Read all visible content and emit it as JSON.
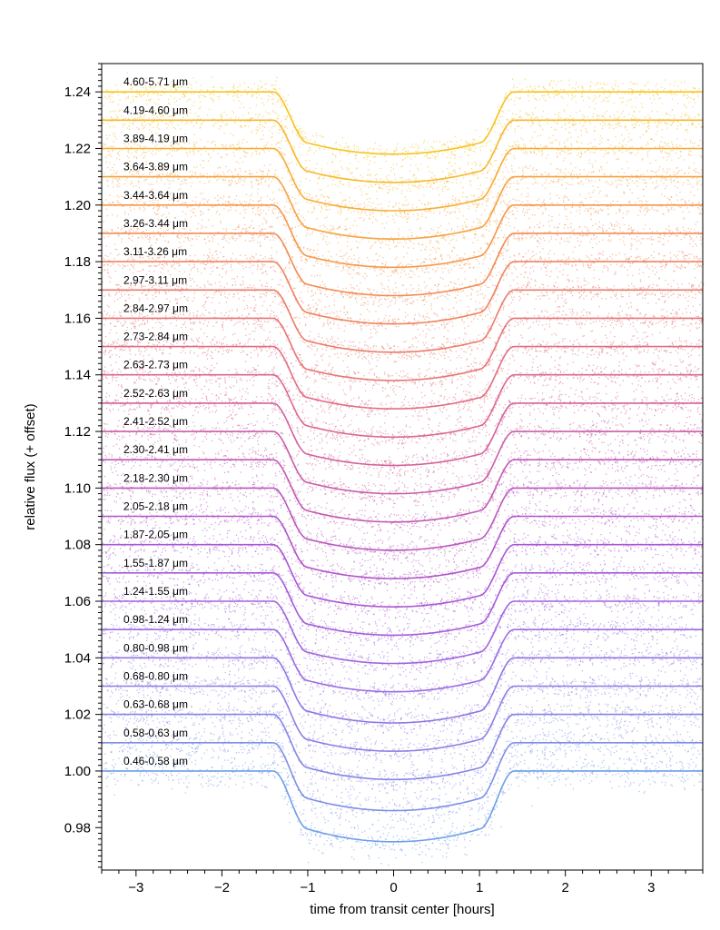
{
  "chart_data": {
    "type": "scatter",
    "xlabel": "time from transit center [hours]",
    "ylabel": "relative flux (+ offset)",
    "xlim": [
      -3.4,
      3.6
    ],
    "ylim": [
      0.965,
      1.25
    ],
    "x_ticks": [
      -3,
      -2,
      -1,
      0,
      1,
      2,
      3
    ],
    "x_tick_labels": [
      "−3",
      "−2",
      "−1",
      "0",
      "1",
      "2",
      "3"
    ],
    "y_ticks": [
      0.98,
      1.0,
      1.02,
      1.04,
      1.06,
      1.08,
      1.1,
      1.12,
      1.14,
      1.16,
      1.18,
      1.2,
      1.22,
      1.24
    ],
    "y_tick_labels": [
      "0.98",
      "1.00",
      "1.02",
      "1.04",
      "1.06",
      "1.08",
      "1.10",
      "1.12",
      "1.14",
      "1.16",
      "1.18",
      "1.20",
      "1.22",
      "1.24"
    ],
    "offset_step": 0.01,
    "transit": {
      "t1": -1.4,
      "t2": -1.0,
      "t3": 1.0,
      "t4": 1.4
    },
    "grid": false,
    "series": [
      {
        "name": "0.46-0.58 μm",
        "baseline": 1.0,
        "depth": 0.025,
        "color": "#6f9ee6"
      },
      {
        "name": "0.58-0.63 μm",
        "baseline": 1.01,
        "depth": 0.024,
        "color": "#7d8fe6"
      },
      {
        "name": "0.63-0.68 μm",
        "baseline": 1.02,
        "depth": 0.023,
        "color": "#8585e4"
      },
      {
        "name": "0.68-0.80 μm",
        "baseline": 1.03,
        "depth": 0.023,
        "color": "#8a7fe3"
      },
      {
        "name": "0.80-0.98 μm",
        "baseline": 1.04,
        "depth": 0.023,
        "color": "#9076e2"
      },
      {
        "name": "0.98-1.24 μm",
        "baseline": 1.05,
        "depth": 0.022,
        "color": "#9a6de0"
      },
      {
        "name": "1.24-1.55 μm",
        "baseline": 1.06,
        "depth": 0.022,
        "color": "#a163dc"
      },
      {
        "name": "1.55-1.87 μm",
        "baseline": 1.07,
        "depth": 0.022,
        "color": "#a65bd8"
      },
      {
        "name": "1.87-2.05 μm",
        "baseline": 1.08,
        "depth": 0.022,
        "color": "#ab56d2"
      },
      {
        "name": "2.05-2.18 μm",
        "baseline": 1.09,
        "depth": 0.022,
        "color": "#b255c8"
      },
      {
        "name": "2.18-2.30 μm",
        "baseline": 1.1,
        "depth": 0.022,
        "color": "#b957bd"
      },
      {
        "name": "2.30-2.41 μm",
        "baseline": 1.11,
        "depth": 0.022,
        "color": "#c05ab3"
      },
      {
        "name": "2.41-2.52 μm",
        "baseline": 1.12,
        "depth": 0.022,
        "color": "#c85ea8"
      },
      {
        "name": "2.52-2.63 μm",
        "baseline": 1.13,
        "depth": 0.022,
        "color": "#d2629a"
      },
      {
        "name": "2.63-2.73 μm",
        "baseline": 1.14,
        "depth": 0.022,
        "color": "#da688e"
      },
      {
        "name": "2.73-2.84 μm",
        "baseline": 1.15,
        "depth": 0.022,
        "color": "#e06e82"
      },
      {
        "name": "2.84-2.97 μm",
        "baseline": 1.16,
        "depth": 0.022,
        "color": "#e67576"
      },
      {
        "name": "2.97-3.11 μm",
        "baseline": 1.17,
        "depth": 0.022,
        "color": "#ea7c6b"
      },
      {
        "name": "3.11-3.26 μm",
        "baseline": 1.18,
        "depth": 0.022,
        "color": "#ee8460"
      },
      {
        "name": "3.26-3.44 μm",
        "baseline": 1.19,
        "depth": 0.022,
        "color": "#f18d55"
      },
      {
        "name": "3.44-3.64 μm",
        "baseline": 1.2,
        "depth": 0.022,
        "color": "#f4974b"
      },
      {
        "name": "3.64-3.89 μm",
        "baseline": 1.21,
        "depth": 0.022,
        "color": "#f6a240"
      },
      {
        "name": "3.89-4.19 μm",
        "baseline": 1.22,
        "depth": 0.022,
        "color": "#f7ad35"
      },
      {
        "name": "4.19-4.60 μm",
        "baseline": 1.23,
        "depth": 0.022,
        "color": "#f7b82a"
      },
      {
        "name": "4.60-5.71 μm",
        "baseline": 1.24,
        "depth": 0.022,
        "color": "#f6c320"
      }
    ]
  }
}
